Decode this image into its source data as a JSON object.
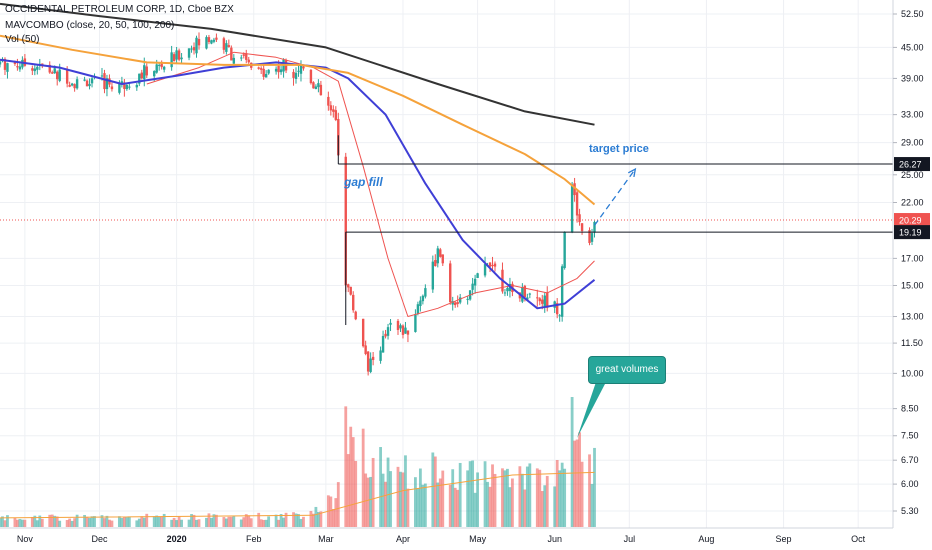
{
  "header": {
    "symbol_line": "OCCIDENTAL PETROLEUM CORP, 1D, Cboe BZX",
    "indicator_1": "MAVCOMBO (close, 20, 50, 100, 200)",
    "indicator_2": "Vol (50)"
  },
  "annotations": {
    "gap_fill": "gap fill",
    "target_price": "target price",
    "great_volumes": "great volumes"
  },
  "colors": {
    "up": "#26a69a",
    "down": "#ef5350",
    "ma20": "#ef5350",
    "ma50": "#3f3fd6",
    "ma100": "#f5a23b",
    "ma200": "#333333",
    "annotation_blue": "#2b7cd3",
    "price_line": "#ef5350"
  },
  "chart_data": {
    "type": "candlestick",
    "title": "OCCIDENTAL PETROLEUM CORP, 1D, Cboe BZX",
    "x_axis": {
      "ticks": [
        "Nov",
        "Dec",
        "2020",
        "Feb",
        "Mar",
        "Apr",
        "May",
        "Jun",
        "Jul",
        "Aug",
        "Sep",
        "Oct"
      ],
      "range": [
        "2019-10-22",
        "2020-10-15"
      ]
    },
    "y_axis": {
      "scale": "log",
      "side": "right",
      "ticks": [
        52.5,
        45.0,
        39.0,
        33.0,
        29.0,
        25.0,
        22.0,
        17.0,
        15.0,
        13.0,
        11.5,
        10.0,
        8.5,
        7.5,
        6.7,
        6.0,
        5.3
      ],
      "tick_labels": [
        "52.50",
        "45.00",
        "39.00",
        "33.00",
        "29.00",
        "25.00",
        "22.00",
        "17.00",
        "15.00",
        "13.00",
        "11.50",
        "10.00",
        "8.50",
        "7.50",
        "6.70",
        "6.00",
        "5.30"
      ],
      "range": [
        4.9,
        56
      ]
    },
    "price_labels": [
      {
        "value": 26.27,
        "label": "26.27",
        "style": "level"
      },
      {
        "value": 20.29,
        "label": "20.29",
        "style": "last"
      },
      {
        "value": 19.19,
        "label": "19.19",
        "style": "level"
      }
    ],
    "horizontal_levels": [
      {
        "value": 26.27,
        "from": "2020-03-06",
        "to": "2020-10-15"
      },
      {
        "value": 19.19,
        "from": "2020-03-09",
        "to": "2020-10-15"
      }
    ],
    "projection": {
      "from": [
        "2020-06-17",
        19.8
      ],
      "to": [
        "2020-07-01",
        26.27
      ]
    },
    "price_anchors": [
      [
        "2019-10-22",
        42.0
      ],
      [
        "2019-11-05",
        41.5
      ],
      [
        "2019-11-20",
        38.5
      ],
      [
        "2019-12-10",
        38.0
      ],
      [
        "2019-12-27",
        41.5
      ],
      [
        "2020-01-08",
        45.5
      ],
      [
        "2020-01-16",
        47.0
      ],
      [
        "2020-01-24",
        43.5
      ],
      [
        "2020-02-03",
        40.0
      ],
      [
        "2020-02-12",
        41.0
      ],
      [
        "2020-02-21",
        41.0
      ],
      [
        "2020-02-28",
        36.0
      ],
      [
        "2020-03-05",
        32.0
      ],
      [
        "2020-03-09",
        15.5
      ],
      [
        "2020-03-12",
        13.5
      ],
      [
        "2020-03-18",
        10.5
      ],
      [
        "2020-03-23",
        11.0
      ],
      [
        "2020-03-27",
        13.0
      ],
      [
        "2020-04-02",
        12.0
      ],
      [
        "2020-04-08",
        14.0
      ],
      [
        "2020-04-15",
        17.5
      ],
      [
        "2020-04-21",
        13.5
      ],
      [
        "2020-04-28",
        14.5
      ],
      [
        "2020-05-06",
        17.0
      ],
      [
        "2020-05-13",
        14.5
      ],
      [
        "2020-05-20",
        14.5
      ],
      [
        "2020-05-28",
        14.0
      ],
      [
        "2020-06-03",
        13.5
      ],
      [
        "2020-06-05",
        19.5
      ],
      [
        "2020-06-08",
        23.5
      ],
      [
        "2020-06-11",
        20.0
      ],
      [
        "2020-06-15",
        18.5
      ],
      [
        "2020-06-17",
        20.29
      ]
    ],
    "moving_averages": [
      {
        "name": "MA20",
        "period": 20,
        "color": "#ef5350",
        "points": [
          [
            "2019-12-20",
            38.0
          ],
          [
            "2020-01-10",
            41.0
          ],
          [
            "2020-01-24",
            44.0
          ],
          [
            "2020-02-10",
            43.0
          ],
          [
            "2020-02-25",
            41.0
          ],
          [
            "2020-03-06",
            38.5
          ],
          [
            "2020-03-16",
            26.0
          ],
          [
            "2020-03-26",
            17.0
          ],
          [
            "2020-04-03",
            13.0
          ],
          [
            "2020-04-15",
            13.5
          ],
          [
            "2020-04-30",
            14.5
          ],
          [
            "2020-05-15",
            15.0
          ],
          [
            "2020-05-29",
            14.5
          ],
          [
            "2020-06-10",
            15.5
          ],
          [
            "2020-06-17",
            16.8
          ]
        ]
      },
      {
        "name": "MA50",
        "period": 50,
        "color": "#3f3fd6",
        "points": [
          [
            "2019-10-22",
            42.5
          ],
          [
            "2019-11-15",
            41.0
          ],
          [
            "2019-12-10",
            38.0
          ],
          [
            "2020-01-01",
            39.5
          ],
          [
            "2020-01-20",
            41.0
          ],
          [
            "2020-02-10",
            42.0
          ],
          [
            "2020-03-01",
            41.0
          ],
          [
            "2020-03-10",
            39.0
          ],
          [
            "2020-03-25",
            33.0
          ],
          [
            "2020-04-10",
            24.0
          ],
          [
            "2020-04-25",
            18.5
          ],
          [
            "2020-05-10",
            15.5
          ],
          [
            "2020-05-25",
            13.5
          ],
          [
            "2020-06-05",
            13.8
          ],
          [
            "2020-06-17",
            15.4
          ]
        ]
      },
      {
        "name": "MA100",
        "period": 100,
        "color": "#f5a23b",
        "points": [
          [
            "2019-10-22",
            47.5
          ],
          [
            "2019-11-20",
            44.5
          ],
          [
            "2019-12-20",
            42.0
          ],
          [
            "2020-01-20",
            41.5
          ],
          [
            "2020-02-20",
            41.5
          ],
          [
            "2020-03-10",
            40.0
          ],
          [
            "2020-04-01",
            36.0
          ],
          [
            "2020-04-25",
            31.5
          ],
          [
            "2020-05-20",
            27.5
          ],
          [
            "2020-06-05",
            24.5
          ],
          [
            "2020-06-17",
            21.8
          ]
        ]
      },
      {
        "name": "MA200",
        "period": 200,
        "color": "#333333",
        "points": [
          [
            "2019-10-22",
            55.0
          ],
          [
            "2019-12-01",
            52.0
          ],
          [
            "2020-01-15",
            49.0
          ],
          [
            "2020-03-01",
            45.0
          ],
          [
            "2020-04-15",
            38.0
          ],
          [
            "2020-05-20",
            33.5
          ],
          [
            "2020-06-17",
            31.5
          ]
        ]
      }
    ],
    "volume_anchors": [
      [
        "2019-10-22",
        0.08
      ],
      [
        "2020-02-20",
        0.1
      ],
      [
        "2020-03-04",
        0.25
      ],
      [
        "2020-03-09",
        0.9
      ],
      [
        "2020-03-20",
        0.55
      ],
      [
        "2020-04-15",
        0.5
      ],
      [
        "2020-05-10",
        0.45
      ],
      [
        "2020-06-01",
        0.45
      ],
      [
        "2020-06-08",
        1.0
      ],
      [
        "2020-06-17",
        0.55
      ]
    ],
    "volume_ma": [
      [
        "2019-10-22",
        0.07
      ],
      [
        "2020-02-25",
        0.09
      ],
      [
        "2020-04-01",
        0.28
      ],
      [
        "2020-05-15",
        0.4
      ],
      [
        "2020-06-17",
        0.42
      ]
    ]
  }
}
